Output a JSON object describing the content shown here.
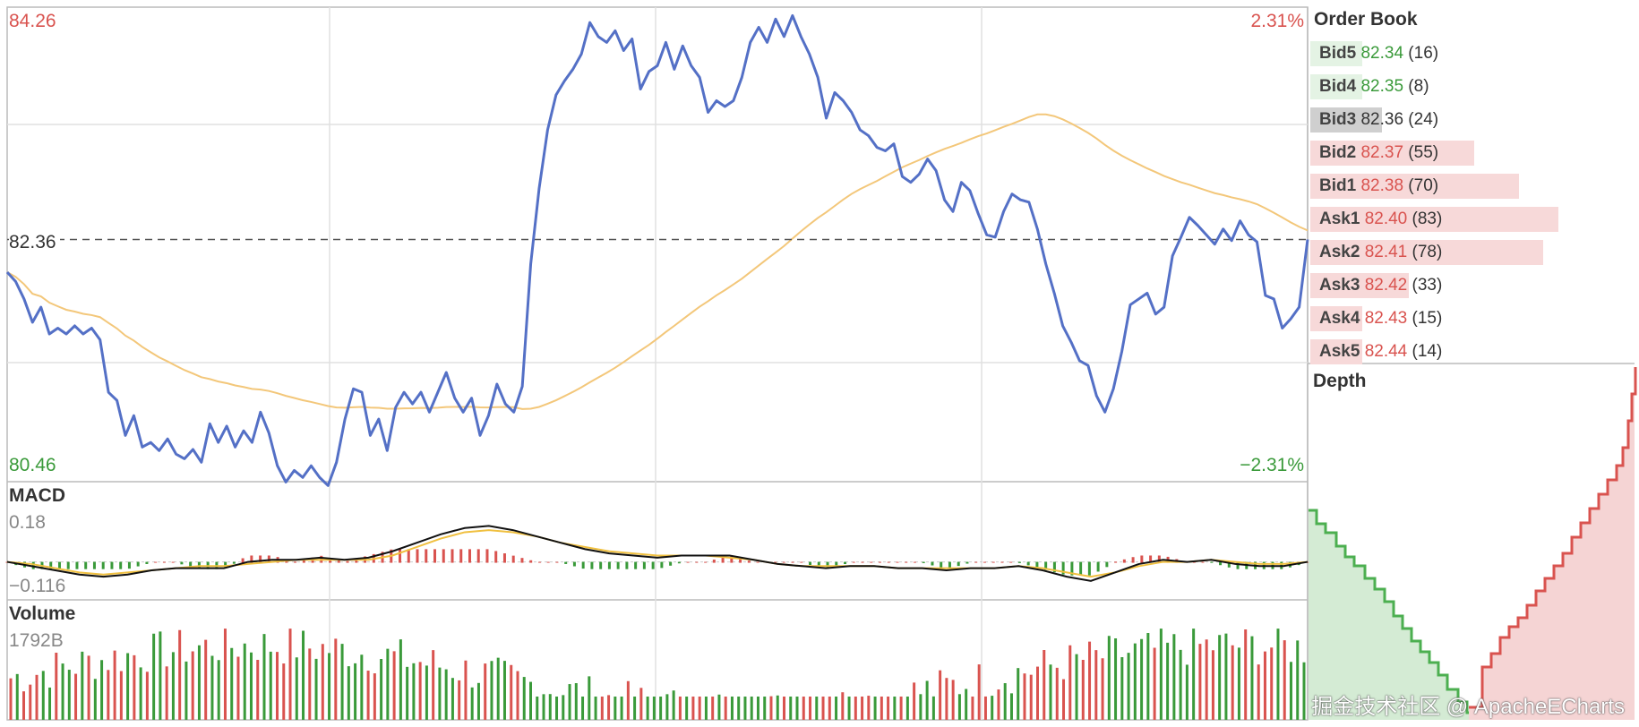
{
  "colors": {
    "price_line": "#5470c6",
    "ma_line": "#f3c77a",
    "up": "#3a9a3a",
    "down": "#d9534f",
    "grid": "#e0e0e0",
    "bid_fill": "#d4ebd4",
    "ask_fill": "#f5d4d4"
  },
  "main": {
    "price_high": "84.26",
    "price_low": "80.46",
    "pct_high": "2.31%",
    "pct_low": "−2.31%",
    "current": "82.36"
  },
  "macd": {
    "title": "MACD",
    "max": "0.18",
    "min": "−0.116"
  },
  "volume": {
    "title": "Volume",
    "max": "1792B"
  },
  "order_book": {
    "title": "Order Book",
    "rows": [
      {
        "side": "Bid5",
        "price": "82.34",
        "qty": "(16)",
        "type": "bid"
      },
      {
        "side": "Bid4",
        "price": "82.35",
        "qty": "(8)",
        "type": "bid"
      },
      {
        "side": "Bid3",
        "price": "82.36",
        "qty": "(24)",
        "type": "current"
      },
      {
        "side": "Bid2",
        "price": "82.37",
        "qty": "(55)",
        "type": "ask"
      },
      {
        "side": "Bid1",
        "price": "82.38",
        "qty": "(70)",
        "type": "ask"
      },
      {
        "side": "Ask1",
        "price": "82.40",
        "qty": "(83)",
        "type": "ask"
      },
      {
        "side": "Ask2",
        "price": "82.41",
        "qty": "(78)",
        "type": "ask"
      },
      {
        "side": "Ask3",
        "price": "82.42",
        "qty": "(33)",
        "type": "ask"
      },
      {
        "side": "Ask4",
        "price": "82.43",
        "qty": "(15)",
        "type": "ask"
      },
      {
        "side": "Ask5",
        "price": "82.44",
        "qty": "(14)",
        "type": "ask"
      }
    ]
  },
  "depth": {
    "title": "Depth"
  },
  "watermark": "掘金技术社区 @ ApacheECharts",
  "chart_data": [
    {
      "type": "line",
      "name": "price",
      "ylim": [
        80.46,
        84.26
      ],
      "series": [
        {
          "values": [
            82.08,
            82.0,
            81.85,
            81.65,
            81.78,
            81.55,
            81.6,
            81.55,
            81.62,
            81.55,
            81.6,
            81.5,
            81.05,
            80.98,
            80.68,
            80.85,
            80.58,
            80.62,
            80.55,
            80.65,
            80.52,
            80.48,
            80.56,
            80.45,
            80.78,
            80.62,
            80.76,
            80.58,
            80.72,
            80.62,
            80.88,
            80.7,
            80.42,
            80.28,
            80.38,
            80.32,
            80.42,
            80.32,
            80.25,
            80.45,
            80.82,
            81.08,
            81.05,
            80.68,
            80.82,
            80.55,
            80.92,
            81.05,
            80.95,
            81.05,
            80.88,
            81.05,
            81.22,
            81.0,
            80.88,
            81.0,
            80.68,
            80.85,
            81.12,
            80.95,
            80.88,
            81.1,
            82.15,
            82.8,
            83.3,
            83.6,
            83.72,
            83.82,
            83.95,
            84.22,
            84.1,
            84.05,
            84.15,
            83.98,
            84.08,
            83.65,
            83.8,
            83.85,
            84.05,
            83.82,
            84.02,
            83.85,
            83.75,
            83.45,
            83.55,
            83.5,
            83.55,
            83.75,
            84.05,
            84.18,
            84.05,
            84.25,
            84.1,
            84.28,
            84.1,
            83.95,
            83.75,
            83.4,
            83.62,
            83.55,
            83.45,
            83.3,
            83.25,
            83.15,
            83.12,
            83.18,
            82.9,
            82.85,
            82.92,
            83.05,
            82.95,
            82.7,
            82.6,
            82.85,
            82.78,
            82.58,
            82.4,
            82.38,
            82.6,
            82.75,
            82.7,
            82.68,
            82.45,
            82.15,
            81.9,
            81.62,
            81.48,
            81.32,
            81.28,
            81.02,
            80.88,
            81.08,
            81.4,
            81.8,
            81.85,
            81.9,
            81.72,
            81.78,
            82.22,
            82.38,
            82.55,
            82.48,
            82.4,
            82.32,
            82.45,
            82.35,
            82.52,
            82.4,
            82.34,
            81.88,
            81.85,
            81.6,
            81.68,
            81.78,
            82.36
          ]
        }
      ]
    },
    {
      "type": "line",
      "name": "macd",
      "ylim": [
        -0.116,
        0.18
      ],
      "series": [
        {
          "values": [
            0.0,
            -0.02,
            -0.04,
            -0.06,
            -0.07,
            -0.06,
            -0.04,
            -0.03,
            -0.03,
            -0.03,
            0.0,
            0.01,
            0.01,
            0.02,
            0.01,
            0.02,
            0.05,
            0.09,
            0.13,
            0.16,
            0.17,
            0.15,
            0.12,
            0.09,
            0.06,
            0.04,
            0.03,
            0.02,
            0.03,
            0.03,
            0.03,
            0.01,
            -0.01,
            -0.02,
            -0.03,
            -0.02,
            -0.02,
            -0.03,
            -0.03,
            -0.04,
            -0.03,
            -0.03,
            -0.02,
            -0.04,
            -0.07,
            -0.09,
            -0.05,
            -0.01,
            0.01,
            0.0,
            0.01,
            -0.01,
            -0.02,
            -0.02,
            0.0
          ]
        },
        {
          "values": [
            0.0,
            -0.01,
            -0.03,
            -0.05,
            -0.06,
            -0.05,
            -0.04,
            -0.03,
            -0.02,
            -0.02,
            -0.01,
            0.0,
            0.01,
            0.01,
            0.01,
            0.01,
            0.03,
            0.07,
            0.11,
            0.14,
            0.15,
            0.14,
            0.12,
            0.09,
            0.07,
            0.05,
            0.04,
            0.03,
            0.03,
            0.03,
            0.02,
            0.01,
            -0.01,
            -0.02,
            -0.02,
            -0.02,
            -0.02,
            -0.03,
            -0.03,
            -0.03,
            -0.03,
            -0.03,
            -0.02,
            -0.03,
            -0.05,
            -0.07,
            -0.05,
            -0.02,
            0.0,
            0.0,
            0.01,
            0.0,
            -0.01,
            -0.01,
            0.0
          ]
        }
      ]
    },
    {
      "type": "bar",
      "name": "volume",
      "ylim": [
        0,
        1792
      ]
    },
    {
      "type": "area",
      "name": "depth"
    }
  ]
}
